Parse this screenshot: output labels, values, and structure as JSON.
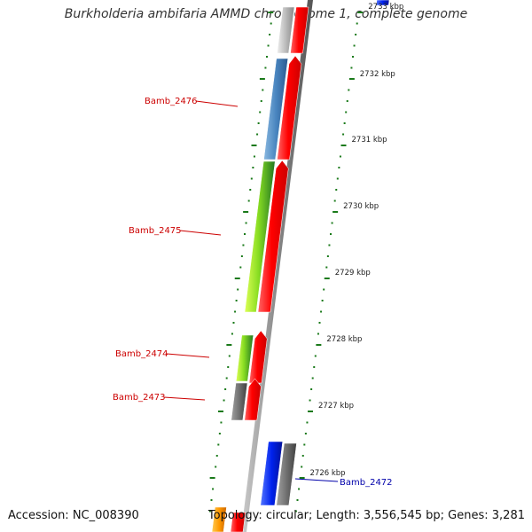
{
  "title": "Burkholderia ambifaria AMMD chromosome 1, complete genome",
  "footer": {
    "accession": "Accession: NC_008390",
    "topology": "Topology: circular; Length: 3,556,545 bp; Genes: 3,281"
  },
  "colors": {
    "forward_strand": "#ff0000",
    "backbone": "#888888",
    "tick": "#1a7a1a",
    "label_red": "#cc0000",
    "label_blue": "#0000aa",
    "steel_blue": "#4a86c0",
    "lime": "#88dd22",
    "gray": "#707070",
    "blue": "#0022ee",
    "orange": "#ff9900",
    "light_gray": "#bbbbbb"
  },
  "scale_labels": [
    "2733 kbp",
    "2732 kbp",
    "2731 kbp",
    "2730 kbp",
    "2729 kbp",
    "2728 kbp",
    "2727 kbp",
    "2726 kbp"
  ],
  "gene_labels": [
    {
      "text": "Bamb_2476",
      "color": "label_red"
    },
    {
      "text": "Bamb_2475",
      "color": "label_red"
    },
    {
      "text": "Bamb_2474",
      "color": "label_red"
    },
    {
      "text": "Bamb_2473",
      "color": "label_red"
    },
    {
      "text": "Bamb_2472",
      "color": "label_blue"
    }
  ]
}
